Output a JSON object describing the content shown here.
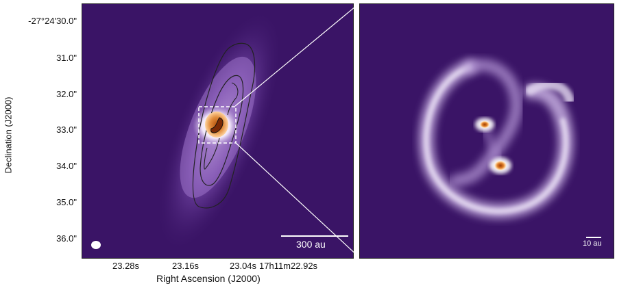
{
  "left_panel": {
    "y_ticks": [
      "-27°24'30.0\"",
      "31.0\"",
      "32.0\"",
      "33.0\"",
      "34.0\"",
      "35.0\"",
      "36.0\""
    ],
    "x_ticks": [
      "23.28s",
      "23.16s",
      "23.04s",
      "17h11m22.92s"
    ],
    "y_axis_title": "Declination (J2000)",
    "x_axis_title": "Right Ascension (J2000)",
    "scale_bar_label": "300 au"
  },
  "right_panel": {
    "scale_bar_label": "10 au"
  },
  "colors": {
    "background": "#3a1466",
    "disk_glow": "#e8dcf2",
    "source_core": "#c65a10",
    "source_halo": "#ffb868"
  }
}
